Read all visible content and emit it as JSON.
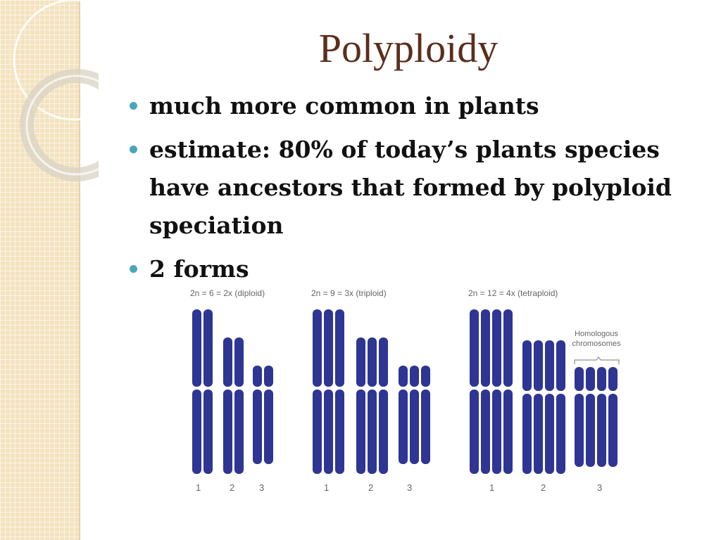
{
  "slide": {
    "title": "Polyploidy",
    "bullets": [
      "much more common in plants",
      "estimate: 80% of today’s plants species have ancestors that formed by polyploid speciation",
      "2 forms"
    ],
    "accent_color": "#4aa6b9",
    "title_color": "#5b2e1c"
  },
  "figure": {
    "chromosome_color": "#2e3592",
    "panels": [
      {
        "caption": "2n = 6 = 2x (diploid)",
        "copies": 2,
        "numbers": [
          "1",
          "2",
          "3"
        ]
      },
      {
        "caption": "2n = 9 = 3x (triploid)",
        "copies": 3,
        "numbers": [
          "1",
          "2",
          "3"
        ]
      },
      {
        "caption": "2n = 12 = 4x (tetraploid)",
        "copies": 4,
        "numbers": [
          "1",
          "2",
          "3"
        ]
      }
    ],
    "homologous_label_line1": "Homologous",
    "homologous_label_line2": "chromosomes"
  }
}
